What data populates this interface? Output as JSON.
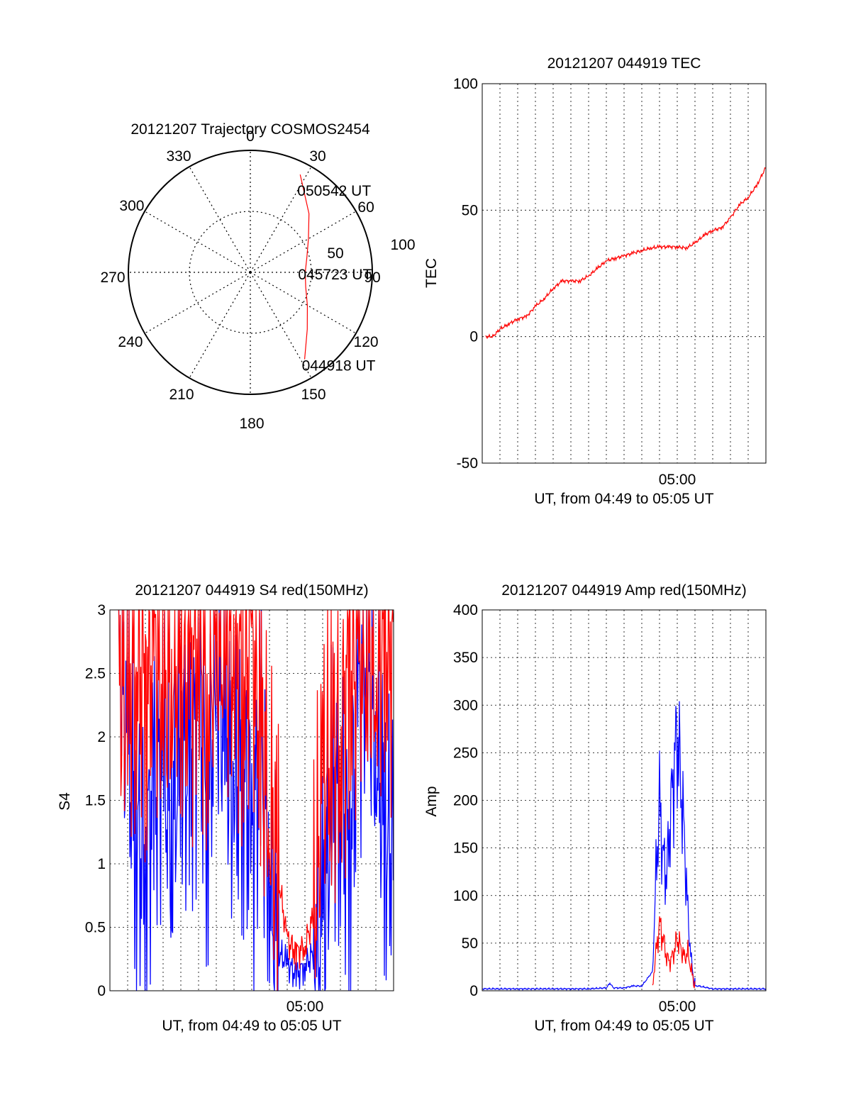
{
  "chart_data": [
    {
      "type": "polar",
      "title": "20121207 Trajectory COSMOS2454",
      "angle_labels": [
        "0",
        "30",
        "60",
        "90",
        "120",
        "150",
        "180",
        "210",
        "240",
        "270",
        "300",
        "330"
      ],
      "radial_labels": [
        "50",
        "100"
      ],
      "radial_range": [
        0,
        100
      ],
      "grid": true,
      "trajectory_color": "#ff0000",
      "trajectory": [
        {
          "az": 27,
          "r": 90
        },
        {
          "az": 45,
          "r": 68
        },
        {
          "az": 60,
          "r": 55
        },
        {
          "az": 75,
          "r": 48
        },
        {
          "az": 90,
          "r": 45
        },
        {
          "az": 105,
          "r": 47
        },
        {
          "az": 120,
          "r": 54
        },
        {
          "az": 135,
          "r": 66
        },
        {
          "az": 148,
          "r": 84
        }
      ],
      "annotations": [
        {
          "text": "050542 UT",
          "az": 27,
          "r": 90
        },
        {
          "text": "045723 UT",
          "az": 90,
          "r": 45
        },
        {
          "text": "044918 UT",
          "az": 148,
          "r": 84
        }
      ]
    },
    {
      "type": "line",
      "title": "20121207 044919 TEC",
      "xlabel": "UT, from 04:49 to 05:05 UT",
      "ylabel": "TEC",
      "xlim": [
        0,
        16
      ],
      "ylim": [
        -50,
        100
      ],
      "yticks": [
        "-50",
        "0",
        "50",
        "100"
      ],
      "xtick_label": {
        "text": "05:00",
        "x": 11
      },
      "grid": true,
      "series": [
        {
          "color": "#ff0000",
          "x": [
            0.2,
            0.6,
            1.0,
            1.5,
            2.0,
            2.5,
            3.0,
            3.5,
            4.0,
            4.5,
            5.0,
            5.5,
            6.0,
            6.5,
            7.0,
            7.5,
            8.0,
            8.5,
            9.0,
            9.5,
            10.0,
            10.5,
            11.0,
            11.5,
            12.0,
            12.5,
            13.0,
            13.5,
            14.0,
            14.5,
            15.0,
            15.5,
            16.0
          ],
          "values": [
            0,
            0,
            3,
            5,
            7,
            8,
            12,
            15,
            19,
            22,
            22,
            22,
            24,
            27,
            30,
            31,
            32,
            33,
            34,
            35,
            35.5,
            35.5,
            35.5,
            35,
            37,
            40,
            42,
            43,
            47,
            52,
            55,
            60,
            67
          ]
        }
      ]
    },
    {
      "type": "line",
      "title": "20121207 044919 S4 red(150MHz)",
      "xlabel": "UT, from 04:49 to 05:05 UT",
      "ylabel": "S4",
      "xlim": [
        0,
        16
      ],
      "ylim": [
        0,
        3
      ],
      "yticks": [
        "0",
        "0.5",
        "1",
        "1.5",
        "2",
        "2.5",
        "3"
      ],
      "xtick_label": {
        "text": "05:00",
        "x": 11
      },
      "grid": true,
      "series": [
        {
          "color": "#0000ff",
          "x": [
            0.5,
            1.0,
            1.5,
            2.0,
            2.5,
            3.0,
            3.5,
            4.0,
            4.5,
            5.0,
            5.5,
            6.0,
            6.5,
            7.0,
            7.5,
            8.0,
            8.5,
            9.0,
            9.5,
            10.0,
            10.5,
            11.0,
            11.5,
            12.0,
            12.5,
            13.0,
            13.5,
            14.0,
            14.5,
            15.0,
            15.5,
            16.0
          ],
          "values": [
            2.8,
            1.9,
            1.2,
            1.05,
            1.6,
            1.8,
            1.2,
            2.0,
            1.6,
            2.3,
            1.4,
            2.5,
            2.0,
            1.5,
            1.8,
            1.2,
            1.9,
            0.9,
            0.3,
            0.22,
            0.12,
            0.2,
            0.3,
            0.5,
            1.4,
            1.6,
            1.0,
            2.2,
            2.6,
            2.0,
            1.2,
            1.1
          ]
        },
        {
          "color": "#ff0000",
          "x": [
            0.5,
            1.0,
            1.5,
            2.0,
            2.5,
            3.0,
            3.5,
            4.0,
            4.5,
            5.0,
            5.5,
            6.0,
            6.5,
            7.0,
            7.5,
            8.0,
            8.5,
            9.0,
            9.5,
            10.0,
            10.5,
            11.0,
            11.5,
            12.0,
            12.5,
            13.0,
            13.5,
            14.0,
            14.5,
            15.0,
            15.5,
            16.0
          ],
          "values": [
            2.5,
            2.2,
            2.6,
            2.4,
            2.7,
            2.3,
            2.5,
            2.6,
            2.4,
            2.8,
            2.2,
            2.9,
            2.6,
            2.7,
            2.4,
            2.8,
            2.0,
            1.4,
            0.9,
            0.4,
            0.3,
            0.35,
            0.6,
            1.6,
            1.9,
            2.0,
            2.5,
            2.6,
            2.7,
            2.5,
            2.8,
            2.6
          ]
        }
      ]
    },
    {
      "type": "line",
      "title": "20121207 044919 Amp red(150MHz)",
      "xlabel": "UT, from 04:49 to 05:05 UT",
      "ylabel": "Amp",
      "xlim": [
        0,
        16
      ],
      "ylim": [
        0,
        400
      ],
      "yticks": [
        "0",
        "50",
        "100",
        "150",
        "200",
        "250",
        "300",
        "350",
        "400"
      ],
      "xtick_label": {
        "text": "05:00",
        "x": 11
      },
      "grid": true,
      "series": [
        {
          "color": "#0000ff",
          "x": [
            0,
            1,
            2,
            3,
            4,
            5,
            6,
            7,
            7.2,
            7.4,
            8,
            8.5,
            9.0,
            9.6,
            9.8,
            10.0,
            10.2,
            10.4,
            10.6,
            10.8,
            11.0,
            11.2,
            11.4,
            11.6,
            11.8,
            12.0,
            12.2,
            13,
            14,
            15,
            16
          ],
          "values": [
            2,
            2,
            2,
            2,
            2,
            2,
            2,
            3,
            8,
            3,
            3,
            5,
            5,
            20,
            120,
            200,
            140,
            120,
            180,
            230,
            270,
            220,
            160,
            80,
            30,
            5,
            5,
            2,
            2,
            2,
            2
          ]
        },
        {
          "color": "#ff0000",
          "x": [
            9.6,
            9.8,
            10.0,
            10.2,
            10.4,
            10.6,
            10.8,
            11.0,
            11.2,
            11.4,
            11.6,
            11.8,
            12.0
          ],
          "values": [
            5,
            40,
            70,
            55,
            35,
            30,
            40,
            55,
            45,
            35,
            40,
            20,
            5
          ]
        }
      ]
    }
  ]
}
